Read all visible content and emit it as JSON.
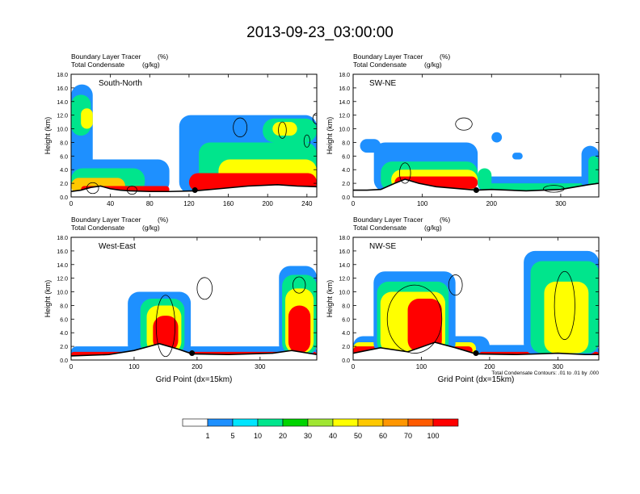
{
  "figure": {
    "title": "2013-09-23_03:00:00",
    "footnote": "Total Condensate Contours: .01 to .01 by .000"
  },
  "colorbar": {
    "colors": [
      "#ffffff",
      "#1e90ff",
      "#00e5ff",
      "#00e58c",
      "#00d400",
      "#a0e632",
      "#ffff00",
      "#ffc800",
      "#ff9600",
      "#ff5a00",
      "#ff0000"
    ],
    "labels": [
      "1",
      "5",
      "10",
      "20",
      "30",
      "40",
      "50",
      "60",
      "70",
      "100"
    ]
  },
  "chart_data": [
    {
      "type": "heatmap",
      "panel_title": "South-North",
      "subtitle_left": [
        "Boundary Layer Tracer",
        "Total Condensate"
      ],
      "subtitle_units": [
        "(%)",
        "(g/kg)"
      ],
      "xlabel": "",
      "ylabel": "Height (km)",
      "xlim": [
        0,
        250
      ],
      "ylim": [
        0,
        18
      ],
      "xticks": [
        0,
        40,
        80,
        120,
        160,
        200,
        240
      ],
      "yticks": [
        0,
        2,
        4,
        6,
        8,
        10,
        12,
        14,
        16,
        18
      ],
      "ytick_labels": [
        "0.0",
        "2.0",
        "4.0",
        "6.0",
        "8.0",
        "10.0",
        "12.0",
        "14.0",
        "16.0",
        "18.0"
      ],
      "marker": {
        "x": 126,
        "y": 1.0
      },
      "terrain": [
        [
          0,
          0.8
        ],
        [
          10,
          1.0
        ],
        [
          20,
          1.4
        ],
        [
          30,
          1.6
        ],
        [
          40,
          1.2
        ],
        [
          50,
          1.0
        ],
        [
          60,
          0.9
        ],
        [
          80,
          0.8
        ],
        [
          100,
          0.8
        ],
        [
          126,
          0.9
        ],
        [
          150,
          1.2
        ],
        [
          180,
          1.6
        ],
        [
          210,
          1.8
        ],
        [
          230,
          1.6
        ],
        [
          250,
          1.5
        ]
      ],
      "blobs": [
        {
          "cls": 1,
          "x0": 0,
          "x1": 22,
          "y0": 0.5,
          "y1": 16.5
        },
        {
          "cls": 3,
          "x0": 0,
          "x1": 20,
          "y0": 9,
          "y1": 15
        },
        {
          "cls": 6,
          "x0": 10,
          "x1": 22,
          "y0": 10,
          "y1": 13
        },
        {
          "cls": 1,
          "x0": 0,
          "x1": 100,
          "y0": 0.5,
          "y1": 5.5
        },
        {
          "cls": 3,
          "x0": 0,
          "x1": 75,
          "y0": 0.5,
          "y1": 4.2
        },
        {
          "cls": 7,
          "x0": 0,
          "x1": 55,
          "y0": 0.5,
          "y1": 2.8
        },
        {
          "cls": 10,
          "x0": 10,
          "x1": 100,
          "y0": 0.6,
          "y1": 1.6
        },
        {
          "cls": 1,
          "x0": 110,
          "x1": 250,
          "y0": 0.5,
          "y1": 12
        },
        {
          "cls": 3,
          "x0": 130,
          "x1": 250,
          "y0": 0.5,
          "y1": 8
        },
        {
          "cls": 6,
          "x0": 150,
          "x1": 250,
          "y0": 0.8,
          "y1": 5.5
        },
        {
          "cls": 10,
          "x0": 120,
          "x1": 250,
          "y0": 0.8,
          "y1": 3.5
        },
        {
          "cls": 3,
          "x0": 195,
          "x1": 250,
          "y0": 8,
          "y1": 11.5
        },
        {
          "cls": 6,
          "x0": 205,
          "x1": 230,
          "y0": 9,
          "y1": 11
        }
      ],
      "contours": [
        {
          "cx": 172,
          "cy": 10.2,
          "rx": 7,
          "ry": 1.4
        },
        {
          "cx": 250,
          "cy": 11.5,
          "rx": 4,
          "ry": 0.8
        },
        {
          "cx": 215,
          "cy": 9.8,
          "rx": 4,
          "ry": 1.2
        },
        {
          "cx": 240,
          "cy": 8.2,
          "rx": 3,
          "ry": 0.9
        },
        {
          "cx": 22,
          "cy": 1.3,
          "rx": 6,
          "ry": 0.8
        },
        {
          "cx": 62,
          "cy": 1.0,
          "rx": 5,
          "ry": 0.6
        }
      ]
    },
    {
      "type": "heatmap",
      "panel_title": "SW-NE",
      "subtitle_left": [
        "Boundary Layer Tracer",
        "Total Condensate"
      ],
      "subtitle_units": [
        "(%)",
        "(g/kg)"
      ],
      "xlabel": "",
      "ylabel": "Height (km)",
      "xlim": [
        0,
        355
      ],
      "ylim": [
        0,
        18
      ],
      "xticks": [
        0,
        100,
        200,
        300
      ],
      "yticks": [
        0,
        2,
        4,
        6,
        8,
        10,
        12,
        14,
        16,
        18
      ],
      "ytick_labels": [
        "0.0",
        "2.0",
        "4.0",
        "6.0",
        "8.0",
        "10.0",
        "12.0",
        "14.0",
        "16.0",
        "18.0"
      ],
      "marker": {
        "x": 178,
        "y": 1.0
      },
      "terrain": [
        [
          0,
          1.0
        ],
        [
          20,
          1.0
        ],
        [
          40,
          1.1
        ],
        [
          60,
          2.0
        ],
        [
          75,
          2.6
        ],
        [
          95,
          2.0
        ],
        [
          120,
          1.5
        ],
        [
          178,
          1.0
        ],
        [
          200,
          1.1
        ],
        [
          250,
          0.9
        ],
        [
          300,
          1.1
        ],
        [
          340,
          1.8
        ],
        [
          355,
          2.0
        ]
      ],
      "blobs": [
        {
          "cls": 1,
          "x0": 30,
          "x1": 180,
          "y0": 0.8,
          "y1": 8.0
        },
        {
          "cls": 3,
          "x0": 40,
          "x1": 180,
          "y0": 0.8,
          "y1": 5.2
        },
        {
          "cls": 6,
          "x0": 55,
          "x1": 180,
          "y0": 1.0,
          "y1": 4.0
        },
        {
          "cls": 10,
          "x0": 60,
          "x1": 180,
          "y0": 1.2,
          "y1": 3.0
        },
        {
          "cls": 1,
          "x0": 180,
          "x1": 355,
          "y0": 0.8,
          "y1": 3.0
        },
        {
          "cls": 3,
          "x0": 190,
          "x1": 340,
          "y0": 0.8,
          "y1": 2.0
        },
        {
          "cls": 3,
          "x0": 180,
          "x1": 200,
          "y0": 1.0,
          "y1": 4.2
        },
        {
          "cls": 1,
          "x0": 330,
          "x1": 355,
          "y0": 1.0,
          "y1": 7.5
        },
        {
          "cls": 3,
          "x0": 340,
          "x1": 355,
          "y0": 1.0,
          "y1": 6.0
        },
        {
          "cls": 1,
          "x0": 10,
          "x1": 40,
          "y0": 6.5,
          "y1": 8.5
        },
        {
          "cls": 1,
          "x0": 200,
          "x1": 215,
          "y0": 8.0,
          "y1": 9.5
        },
        {
          "cls": 1,
          "x0": 230,
          "x1": 245,
          "y0": 5.5,
          "y1": 6.5
        }
      ],
      "contours": [
        {
          "cx": 160,
          "cy": 10.7,
          "rx": 12,
          "ry": 0.9
        },
        {
          "cx": 290,
          "cy": 1.2,
          "rx": 15,
          "ry": 0.5
        },
        {
          "cx": 75,
          "cy": 3.5,
          "rx": 8,
          "ry": 1.5
        }
      ]
    },
    {
      "type": "heatmap",
      "panel_title": "West-East",
      "subtitle_left": [
        "Boundary Layer Tracer",
        "Total Condensate"
      ],
      "subtitle_units": [
        "(%)",
        "(g/kg)"
      ],
      "xlabel": "Grid Point (dx=15km)",
      "ylabel": "Height (km)",
      "xlim": [
        0,
        390
      ],
      "ylim": [
        0,
        18
      ],
      "xticks": [
        0,
        100,
        200,
        300
      ],
      "yticks": [
        0,
        2,
        4,
        6,
        8,
        10,
        12,
        14,
        16,
        18
      ],
      "ytick_labels": [
        "0.0",
        "2.0",
        "4.0",
        "6.0",
        "8.0",
        "10.0",
        "12.0",
        "14.0",
        "16.0",
        "18.0"
      ],
      "marker": {
        "x": 192,
        "y": 1.0
      },
      "terrain": [
        [
          0,
          0.6
        ],
        [
          60,
          0.8
        ],
        [
          100,
          1.4
        ],
        [
          140,
          2.4
        ],
        [
          170,
          1.6
        ],
        [
          192,
          0.9
        ],
        [
          250,
          0.8
        ],
        [
          320,
          1.0
        ],
        [
          350,
          1.4
        ],
        [
          390,
          0.8
        ]
      ],
      "blobs": [
        {
          "cls": 1,
          "x0": 0,
          "x1": 390,
          "y0": 0.4,
          "y1": 2.0
        },
        {
          "cls": 10,
          "x0": 0,
          "x1": 390,
          "y0": 0.4,
          "y1": 1.2
        },
        {
          "cls": 1,
          "x0": 90,
          "x1": 190,
          "y0": 0.6,
          "y1": 10.0
        },
        {
          "cls": 3,
          "x0": 110,
          "x1": 180,
          "y0": 0.8,
          "y1": 9.0
        },
        {
          "cls": 6,
          "x0": 120,
          "x1": 175,
          "y0": 1.0,
          "y1": 8.0
        },
        {
          "cls": 10,
          "x0": 130,
          "x1": 170,
          "y0": 1.2,
          "y1": 6.5
        },
        {
          "cls": 1,
          "x0": 330,
          "x1": 390,
          "y0": 0.6,
          "y1": 13.8
        },
        {
          "cls": 3,
          "x0": 335,
          "x1": 390,
          "y0": 0.8,
          "y1": 12.5
        },
        {
          "cls": 6,
          "x0": 340,
          "x1": 385,
          "y0": 1.0,
          "y1": 10.5
        },
        {
          "cls": 10,
          "x0": 345,
          "x1": 380,
          "y0": 1.0,
          "y1": 8.0
        }
      ],
      "contours": [
        {
          "cx": 212,
          "cy": 10.5,
          "rx": 12,
          "ry": 1.6
        },
        {
          "cx": 362,
          "cy": 11.0,
          "rx": 10,
          "ry": 1.2
        },
        {
          "cx": 150,
          "cy": 5.0,
          "rx": 15,
          "ry": 4.5
        }
      ]
    },
    {
      "type": "heatmap",
      "panel_title": "NW-SE",
      "subtitle_left": [
        "Boundary Layer Tracer",
        "Total Condensate"
      ],
      "subtitle_units": [
        "(%)",
        "(g/kg)"
      ],
      "xlabel": "Grid Point (dx=15km)",
      "ylabel": "Height (km)",
      "xlim": [
        0,
        360
      ],
      "ylim": [
        0,
        18
      ],
      "xticks": [
        0,
        100,
        200,
        300
      ],
      "yticks": [
        0,
        2,
        4,
        6,
        8,
        10,
        12,
        14,
        16,
        18
      ],
      "ytick_labels": [
        "0.0",
        "2.0",
        "4.0",
        "6.0",
        "8.0",
        "10.0",
        "12.0",
        "14.0",
        "16.0",
        "18.0"
      ],
      "marker": {
        "x": 180,
        "y": 1.0
      },
      "terrain": [
        [
          0,
          1.0
        ],
        [
          40,
          1.8
        ],
        [
          80,
          1.2
        ],
        [
          120,
          2.6
        ],
        [
          150,
          1.8
        ],
        [
          180,
          0.9
        ],
        [
          240,
          0.8
        ],
        [
          300,
          1.0
        ],
        [
          340,
          0.8
        ],
        [
          360,
          0.8
        ]
      ],
      "blobs": [
        {
          "cls": 1,
          "x0": 0,
          "x1": 200,
          "y0": 0.6,
          "y1": 3.5
        },
        {
          "cls": 6,
          "x0": 0,
          "x1": 180,
          "y0": 0.8,
          "y1": 2.6
        },
        {
          "cls": 10,
          "x0": 0,
          "x1": 175,
          "y0": 0.8,
          "y1": 2.0
        },
        {
          "cls": 1,
          "x0": 30,
          "x1": 150,
          "y0": 0.8,
          "y1": 13.0
        },
        {
          "cls": 3,
          "x0": 35,
          "x1": 140,
          "y0": 1.0,
          "y1": 11.5
        },
        {
          "cls": 6,
          "x0": 40,
          "x1": 135,
          "y0": 1.0,
          "y1": 10.0
        },
        {
          "cls": 10,
          "x0": 80,
          "x1": 130,
          "y0": 1.2,
          "y1": 9.0
        },
        {
          "cls": 1,
          "x0": 180,
          "x1": 360,
          "y0": 0.5,
          "y1": 2.2
        },
        {
          "cls": 10,
          "x0": 185,
          "x1": 360,
          "y0": 0.5,
          "y1": 1.2
        },
        {
          "cls": 1,
          "x0": 250,
          "x1": 360,
          "y0": 0.8,
          "y1": 16.0
        },
        {
          "cls": 3,
          "x0": 260,
          "x1": 360,
          "y0": 1.0,
          "y1": 14.5
        },
        {
          "cls": 6,
          "x0": 280,
          "x1": 345,
          "y0": 1.0,
          "y1": 11.5
        }
      ],
      "contours": [
        {
          "cx": 150,
          "cy": 11.0,
          "rx": 10,
          "ry": 1.5
        },
        {
          "cx": 310,
          "cy": 8.0,
          "rx": 15,
          "ry": 5.0
        },
        {
          "cx": 90,
          "cy": 6.0,
          "rx": 40,
          "ry": 5.0
        }
      ]
    }
  ]
}
